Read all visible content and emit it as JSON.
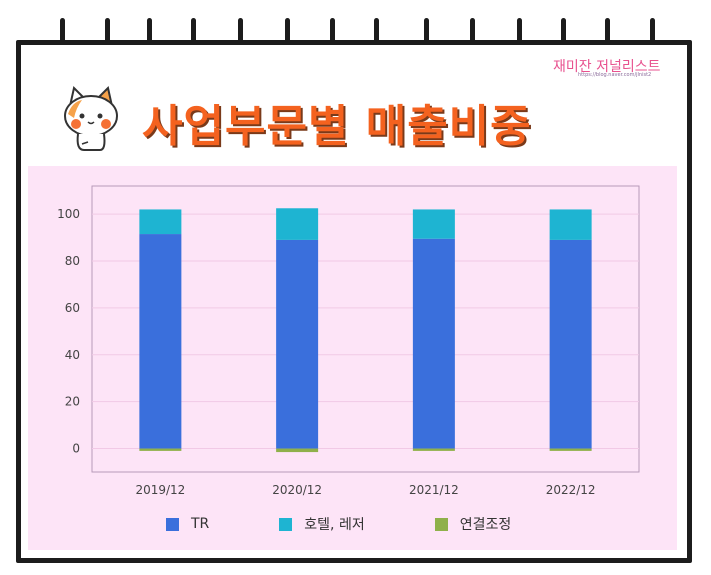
{
  "header": {
    "title": "사업부문별 매출비중",
    "watermark": "재미잔 저널리스트",
    "watermark_url": "https://blog.naver.com/jlnist2"
  },
  "colors": {
    "title": "#f4621f",
    "frame": "#1c1c1c",
    "panel_bg": "#fde4f7"
  },
  "chart_data": {
    "type": "bar",
    "stacked": true,
    "categories": [
      "2019/12",
      "2020/12",
      "2021/12",
      "2022/12"
    ],
    "series": [
      {
        "name": "TR",
        "color": "#3a6fdc",
        "values": [
          91.5,
          89,
          89.5,
          89
        ]
      },
      {
        "name": "호텔, 레저",
        "color": "#1eb4d2",
        "values": [
          10.5,
          13.5,
          12.5,
          13
        ]
      },
      {
        "name": "연결조정",
        "color": "#8fb04a",
        "values": [
          -1,
          -1.5,
          -1,
          -1
        ]
      }
    ],
    "yticks": [
      0,
      20,
      40,
      60,
      80,
      100
    ],
    "ylim": [
      -10,
      112
    ],
    "grid": true,
    "legend_position": "bottom"
  }
}
